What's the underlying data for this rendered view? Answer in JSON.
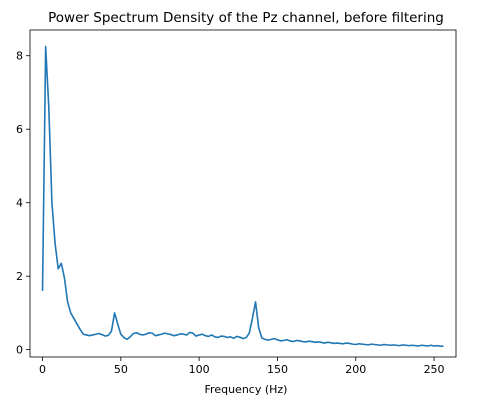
{
  "chart_data": {
    "type": "line",
    "title": "Power Spectrum Density of the Pz channel, before filtering",
    "xlabel": "Frequency (Hz)",
    "ylabel": "",
    "xlim": [
      -8,
      264
    ],
    "ylim": [
      -0.2,
      8.7
    ],
    "xticks": [
      0,
      50,
      100,
      150,
      200,
      250
    ],
    "yticks": [
      0,
      2,
      4,
      6,
      8
    ],
    "grid": false,
    "legend": "none",
    "series": [
      {
        "color": "#1f77b4",
        "x": [
          0,
          2,
          4,
          6,
          8,
          10,
          12,
          14,
          16,
          18,
          20,
          22,
          24,
          26,
          28,
          30,
          32,
          34,
          36,
          38,
          40,
          42,
          44,
          46,
          48,
          50,
          52,
          54,
          56,
          58,
          60,
          62,
          64,
          66,
          68,
          70,
          72,
          74,
          76,
          78,
          80,
          82,
          84,
          86,
          88,
          90,
          92,
          94,
          96,
          98,
          100,
          102,
          104,
          106,
          108,
          110,
          112,
          114,
          116,
          118,
          120,
          122,
          124,
          126,
          128,
          130,
          132,
          134,
          136,
          138,
          140,
          142,
          144,
          146,
          148,
          150,
          152,
          154,
          156,
          158,
          160,
          162,
          164,
          166,
          168,
          170,
          172,
          174,
          176,
          178,
          180,
          182,
          184,
          186,
          188,
          190,
          192,
          194,
          196,
          198,
          200,
          202,
          204,
          206,
          208,
          210,
          212,
          214,
          216,
          218,
          220,
          222,
          224,
          226,
          228,
          230,
          232,
          234,
          236,
          238,
          240,
          242,
          244,
          246,
          248,
          250,
          252,
          254,
          256
        ],
        "y": [
          1.6,
          8.25,
          6.6,
          4.0,
          2.9,
          2.2,
          2.35,
          1.95,
          1.3,
          1.0,
          0.85,
          0.7,
          0.55,
          0.42,
          0.4,
          0.38,
          0.4,
          0.42,
          0.44,
          0.41,
          0.37,
          0.39,
          0.5,
          1.0,
          0.7,
          0.42,
          0.33,
          0.28,
          0.35,
          0.44,
          0.46,
          0.42,
          0.4,
          0.42,
          0.46,
          0.45,
          0.38,
          0.4,
          0.42,
          0.45,
          0.43,
          0.41,
          0.38,
          0.4,
          0.43,
          0.42,
          0.4,
          0.47,
          0.45,
          0.37,
          0.4,
          0.42,
          0.38,
          0.36,
          0.4,
          0.35,
          0.33,
          0.37,
          0.36,
          0.33,
          0.35,
          0.31,
          0.36,
          0.34,
          0.3,
          0.33,
          0.45,
          0.85,
          1.3,
          0.6,
          0.32,
          0.28,
          0.26,
          0.28,
          0.3,
          0.27,
          0.24,
          0.25,
          0.27,
          0.24,
          0.22,
          0.25,
          0.24,
          0.22,
          0.21,
          0.23,
          0.22,
          0.2,
          0.21,
          0.2,
          0.18,
          0.2,
          0.19,
          0.17,
          0.18,
          0.17,
          0.16,
          0.18,
          0.17,
          0.15,
          0.14,
          0.16,
          0.15,
          0.14,
          0.13,
          0.15,
          0.14,
          0.13,
          0.12,
          0.14,
          0.13,
          0.12,
          0.13,
          0.12,
          0.11,
          0.13,
          0.12,
          0.11,
          0.12,
          0.11,
          0.1,
          0.12,
          0.11,
          0.1,
          0.12,
          0.1,
          0.11,
          0.09,
          0.1
        ]
      }
    ]
  }
}
